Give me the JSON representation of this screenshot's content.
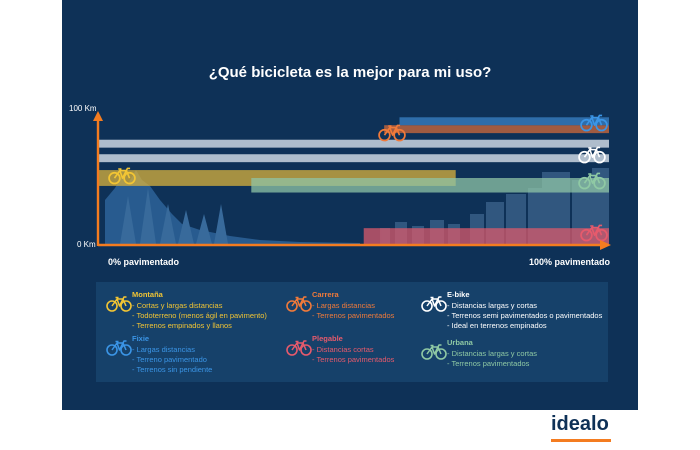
{
  "chart_data": {
    "type": "range-bar",
    "title": "¿Qué bicicleta es la mejor para mi uso?",
    "y_axis": {
      "min_label": "0 Km",
      "max_label": "100 Km",
      "range": [
        0,
        100
      ]
    },
    "x_axis": {
      "min_label": "0% pavimentado",
      "max_label": "100% pavimentado",
      "range": [
        0,
        100
      ]
    },
    "series": [
      {
        "name": "E-bike",
        "color": "#cbd6e1",
        "bands": [
          {
            "x": [
              100,
              100
            ],
            "y": [
              0,
              0
            ]
          }
        ]
      },
      {
        "name": "Carrera",
        "color": "#d2693a",
        "bands": [
          {
            "x": [
              56,
              100
            ],
            "y": [
              84,
              90
            ]
          }
        ]
      },
      {
        "name": "Fixie",
        "color": "#3a82c6",
        "bands": [
          {
            "x": [
              59,
              100
            ],
            "y": [
              90,
              96
            ]
          }
        ]
      },
      {
        "name": "E-bike",
        "color": "#cbd6e1",
        "bands": [
          {
            "x": [
              0,
              100
            ],
            "y": [
              73,
              79
            ]
          }
        ]
      },
      {
        "name": "E-bike",
        "color": "#cbd6e1",
        "bands": [
          {
            "x": [
              0,
              100
            ],
            "y": [
              62,
              68
            ]
          }
        ]
      },
      {
        "name": "Montaña",
        "color": "#d9b23b",
        "bands": [
          {
            "x": [
              0,
              70
            ],
            "y": [
              44,
              56
            ]
          }
        ]
      },
      {
        "name": "Urbana",
        "color": "#8fc4a6",
        "bands": [
          {
            "x": [
              30,
              100
            ],
            "y": [
              39,
              50
            ]
          }
        ]
      },
      {
        "name": "Plegable",
        "color": "#d9596b",
        "bands": [
          {
            "x": [
              52,
              100
            ],
            "y": [
              0,
              12
            ]
          }
        ]
      }
    ],
    "legend": [
      {
        "name": "Montaña",
        "color": "#f2c534",
        "features": [
          "- Cortas y largas distancias",
          "- Todoterreno (menos ágil en pavimento)",
          "- Terrenos empinados y llanos"
        ]
      },
      {
        "name": "Fixie",
        "color": "#3b95e6",
        "features": [
          "- Largas distancias",
          "- Terreno pavimentado",
          "- Terrenos sin pendiente"
        ]
      },
      {
        "name": "Carrera",
        "color": "#f07a3a",
        "features": [
          "- Largas distancias",
          "- Terrenos pavimentados"
        ]
      },
      {
        "name": "Plegable",
        "color": "#e65a6c",
        "features": [
          "- Distancias cortas",
          "- Terrenos pavimentados"
        ]
      },
      {
        "name": "E-bike",
        "color": "#ffffff",
        "features": [
          "- Distancias largas y cortas",
          "- Terrenos semi pavimentados o pavimentados",
          "- Ideal en terrenos empinados"
        ]
      },
      {
        "name": "Urbana",
        "color": "#8fc9a4",
        "features": [
          "- Distancias  largas y cortas",
          "- Terrenos pavimentados"
        ]
      }
    ],
    "legend_placement": "bottom"
  },
  "brand": {
    "name": "idealo",
    "accent": "#f47c20"
  },
  "icons": {
    "bike": "bicycle-icon"
  }
}
